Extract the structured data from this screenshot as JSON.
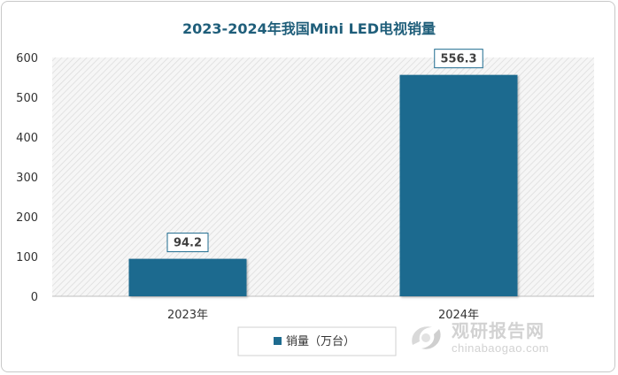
{
  "chart_data": {
    "type": "bar",
    "title": "2023-2024年我国Mini LED电视销量",
    "categories": [
      "2023年",
      "2024年"
    ],
    "series": [
      {
        "name": "销量（万台）",
        "values": [
          94.2,
          556.3
        ],
        "labels": [
          "94.2",
          "556.3"
        ]
      }
    ],
    "ylim": [
      0,
      600
    ],
    "yticks": [
      0,
      100,
      200,
      300,
      400,
      500,
      600
    ],
    "grid": false,
    "background": "diagonal-hatch",
    "legend": "bottom",
    "colors": {
      "bar": "#1e6b8f",
      "title": "#1f5e7a",
      "label_border": "#1e6b8f"
    }
  },
  "watermark": {
    "text_cn": "观研报告网",
    "text_en": "chinabaogao.com",
    "icon": "logo-swirl-icon"
  }
}
